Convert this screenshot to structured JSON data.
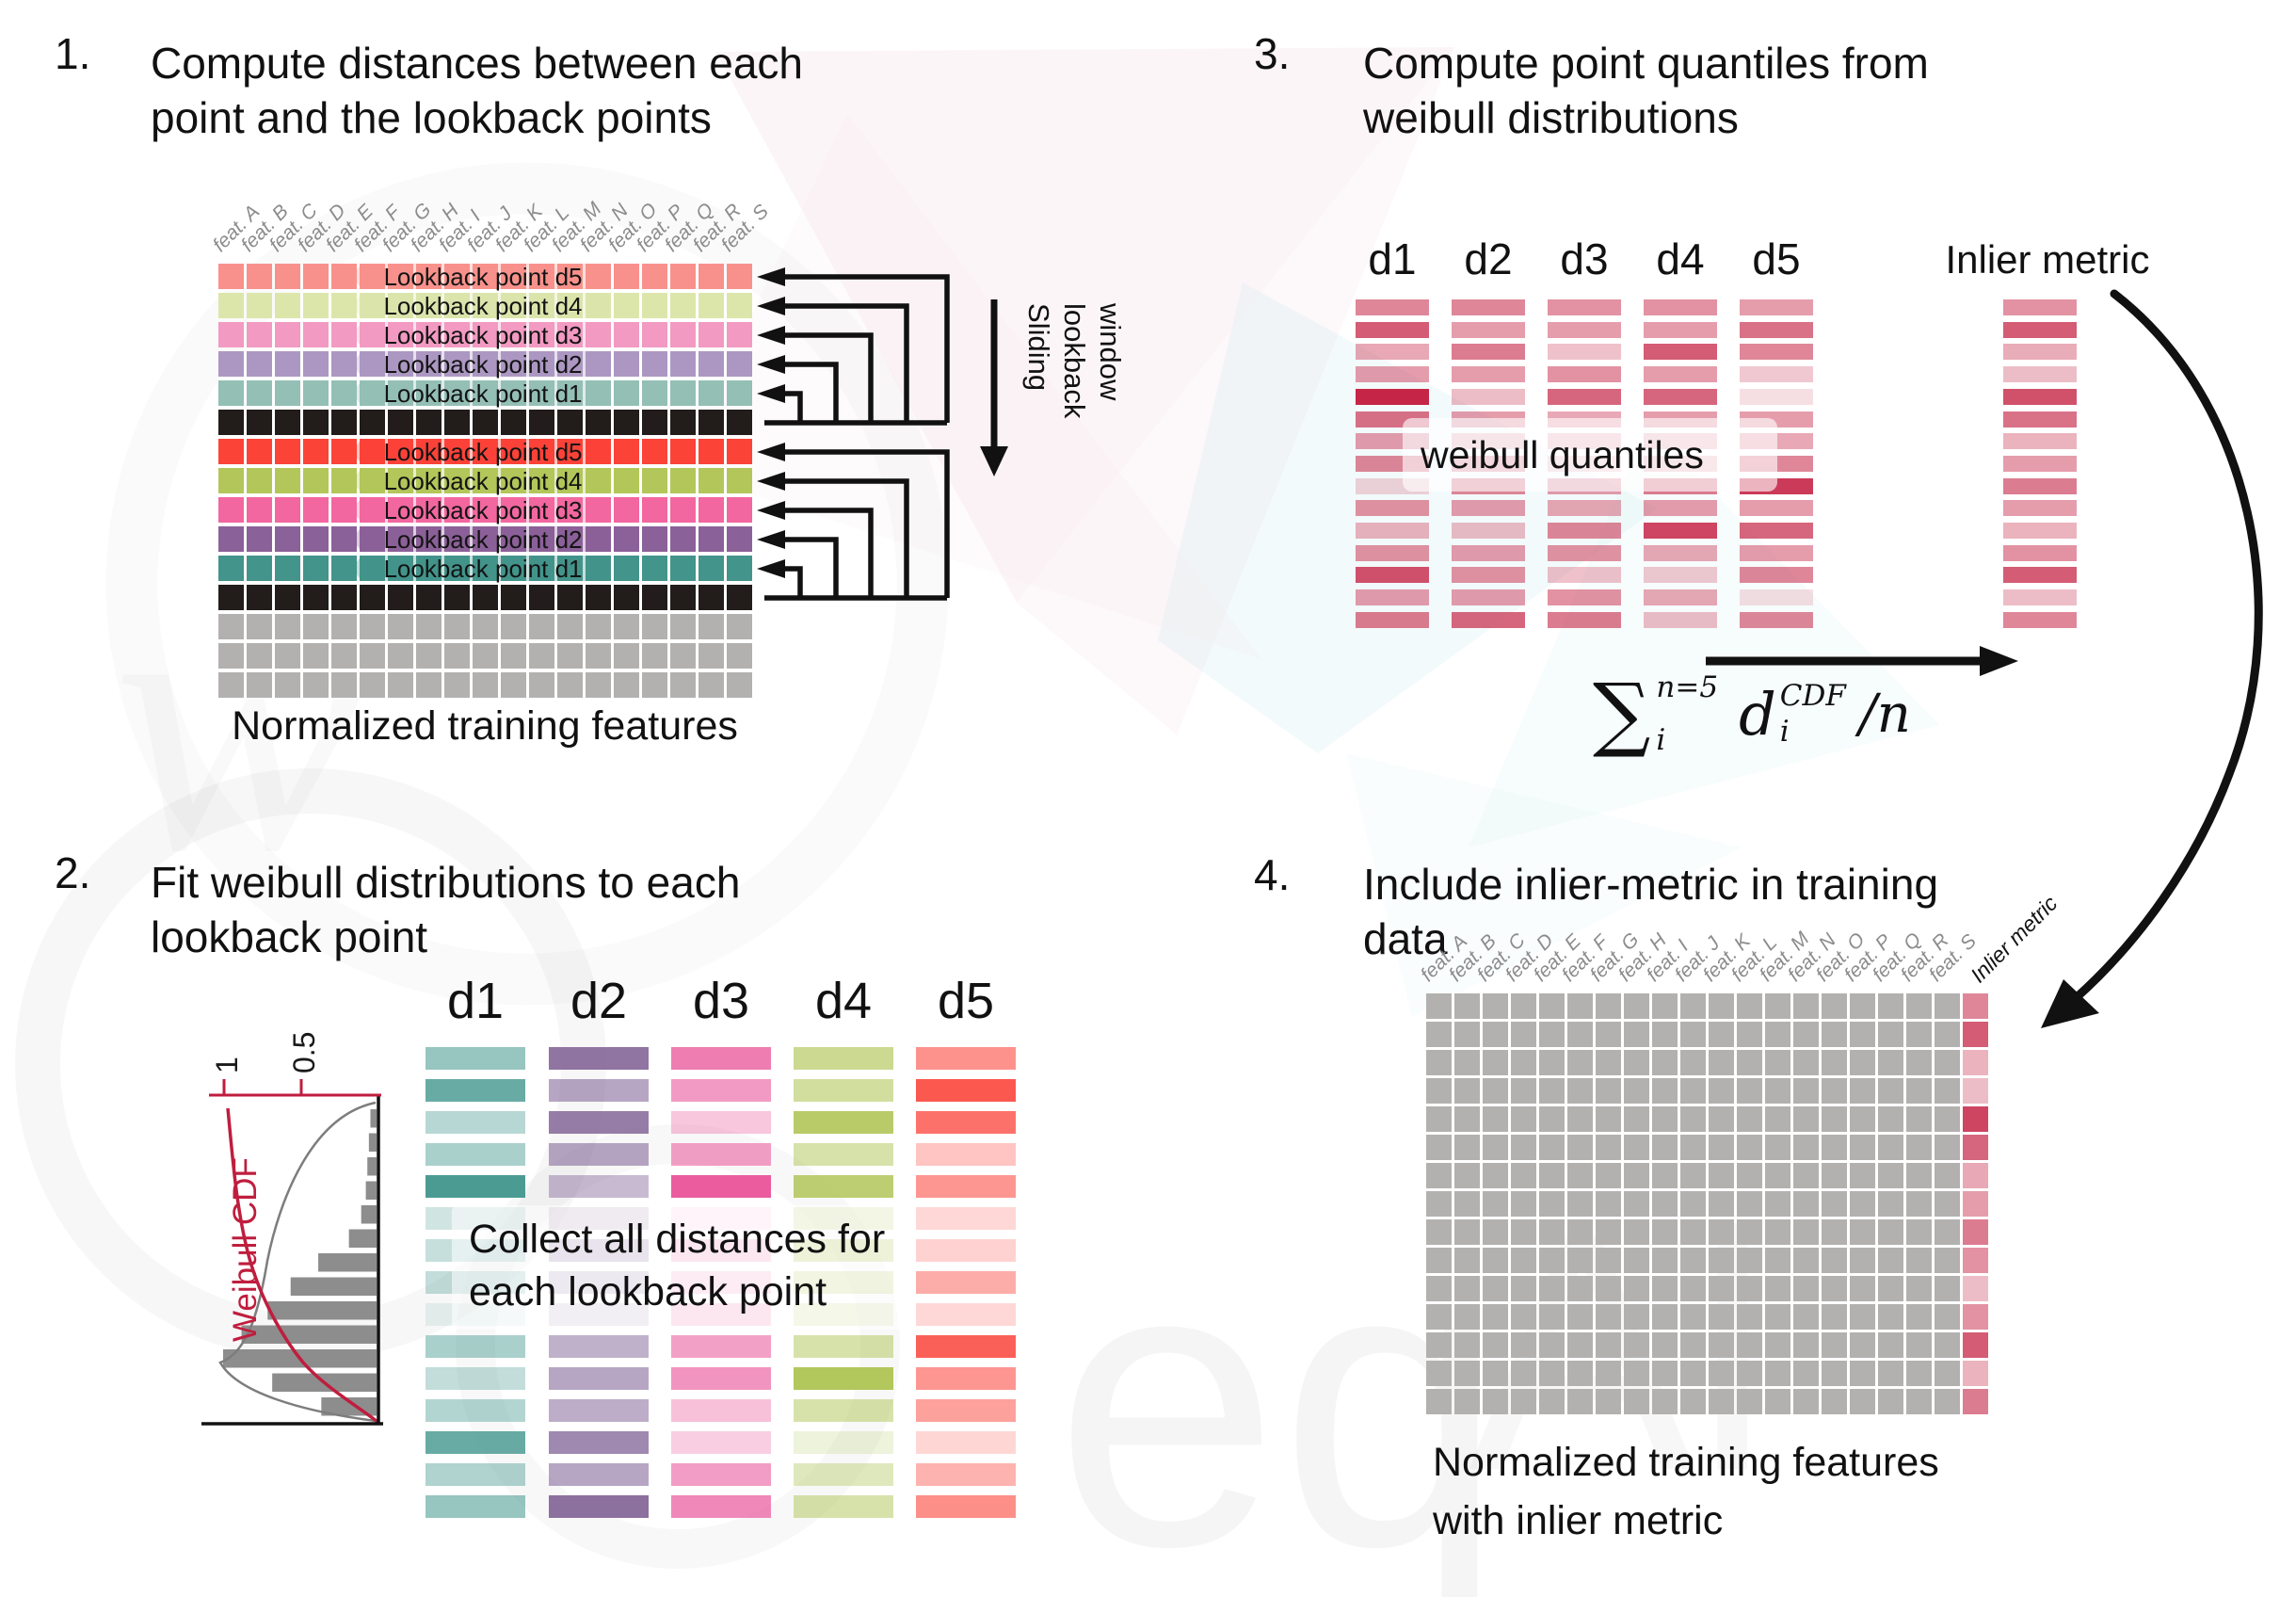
{
  "d_headers": [
    "d1",
    "d2",
    "d3",
    "d4",
    "d5"
  ],
  "features": [
    "feat. A",
    "feat. B",
    "feat. C",
    "feat. D",
    "feat. E",
    "feat. F",
    "feat. G",
    "feat. H",
    "feat. I",
    "feat. J",
    "feat. K",
    "feat. L",
    "feat. M",
    "feat. N",
    "feat. O",
    "feat. P",
    "feat. Q",
    "feat. R",
    "feat. S"
  ],
  "step1": {
    "number": "1.",
    "title_lines": [
      "Compute distances between each",
      "point and the lookback points"
    ],
    "rows": [
      {
        "color": "#f8918c",
        "label": "Lookback point d5"
      },
      {
        "color": "#dce6ab",
        "label": "Lookback point d4"
      },
      {
        "color": "#f29ac2",
        "label": "Lookback point d3"
      },
      {
        "color": "#ac97c2",
        "label": "Lookback point d2"
      },
      {
        "color": "#94bfb5",
        "label": "Lookback point d1"
      },
      {
        "color": "#221d1a",
        "label": ""
      },
      {
        "color": "#fc4338",
        "label": "Lookback point d5"
      },
      {
        "color": "#b3c65a",
        "label": "Lookback point d4"
      },
      {
        "color": "#f2679f",
        "label": "Lookback point d3"
      },
      {
        "color": "#8b6199",
        "label": "Lookback point d2"
      },
      {
        "color": "#43948b",
        "label": "Lookback point d1"
      },
      {
        "color": "#221d1a",
        "label": ""
      },
      {
        "color": "#b3b0b0",
        "label": ""
      },
      {
        "color": "#b3b0b0",
        "label": ""
      },
      {
        "color": "#b3b0b0",
        "label": ""
      }
    ],
    "caption": "Normalized training features",
    "sliding": [
      "Sliding",
      "lookback",
      "window"
    ]
  },
  "step2": {
    "number": "2.",
    "title_lines": [
      "Fit weibull distributions to each",
      "lookback point"
    ],
    "hist": {
      "type": "bar",
      "ylabel": "Weibull CDF",
      "ticks": [
        "1",
        "0.5"
      ],
      "bars": [
        0.04,
        0.05,
        0.06,
        0.07,
        0.1,
        0.18,
        0.38,
        0.56,
        0.71,
        0.88,
        1.0,
        0.68,
        0.36
      ]
    },
    "columns": [
      {
        "name": "d1",
        "color": "#42968d",
        "values": [
          0.55,
          0.8,
          0.38,
          0.45,
          0.95,
          0.25,
          0.3,
          0.32,
          0.12,
          0.45,
          0.32,
          0.4,
          0.8,
          0.42,
          0.55
        ]
      },
      {
        "name": "d2",
        "color": "#7c5c91",
        "values": [
          0.85,
          0.55,
          0.8,
          0.55,
          0.42,
          0.28,
          0.38,
          0.3,
          0.22,
          0.48,
          0.55,
          0.5,
          0.72,
          0.55,
          0.88
        ]
      },
      {
        "name": "d3",
        "color": "#ea5c9e",
        "values": [
          0.8,
          0.62,
          0.35,
          0.58,
          1.0,
          0.15,
          0.32,
          0.26,
          0.32,
          0.58,
          0.65,
          0.38,
          0.3,
          0.6,
          0.72
        ]
      },
      {
        "name": "d4",
        "color": "#abc24e",
        "values": [
          0.62,
          0.55,
          0.85,
          0.48,
          0.8,
          0.32,
          0.48,
          0.38,
          0.28,
          0.48,
          0.92,
          0.48,
          0.2,
          0.38,
          0.48
        ]
      },
      {
        "name": "d5",
        "color": "#fb4a41",
        "values": [
          0.6,
          0.92,
          0.78,
          0.32,
          0.58,
          0.48,
          0.55,
          1.0,
          0.48,
          0.88,
          0.58,
          0.52,
          0.22,
          0.42,
          0.62
        ]
      }
    ],
    "note_lines": [
      "Collect all distances for",
      "each lookback point"
    ]
  },
  "step3": {
    "number": "3.",
    "title_lines": [
      "Compute point quantiles from",
      "weibull distributions"
    ],
    "inlier_header": "Inlier metric",
    "overlay": "weibull quantiles",
    "base_color": "#c52546",
    "columns": [
      [
        0.55,
        0.75,
        0.4,
        0.45,
        1.0,
        0.65,
        0.45,
        0.55,
        0.2,
        0.5,
        0.35,
        0.5,
        0.8,
        0.45,
        0.6
      ],
      [
        0.55,
        0.45,
        0.6,
        0.45,
        0.3,
        0.45,
        0.28,
        0.45,
        0.55,
        0.45,
        0.3,
        0.45,
        0.5,
        0.45,
        0.7
      ],
      [
        0.5,
        0.45,
        0.28,
        0.5,
        0.7,
        0.4,
        0.3,
        0.22,
        0.45,
        0.4,
        0.55,
        0.5,
        0.28,
        0.5,
        0.6
      ],
      [
        0.5,
        0.45,
        0.75,
        0.45,
        0.7,
        0.45,
        0.3,
        0.28,
        0.6,
        0.45,
        0.85,
        0.4,
        0.25,
        0.4,
        0.3
      ],
      [
        0.45,
        0.65,
        0.55,
        0.25,
        0.15,
        0.45,
        0.4,
        0.55,
        0.9,
        0.45,
        0.7,
        0.45,
        0.55,
        0.15,
        0.55
      ]
    ],
    "inlier": [
      0.5,
      0.75,
      0.38,
      0.3,
      0.8,
      0.65,
      0.35,
      0.45,
      0.6,
      0.45,
      0.35,
      0.5,
      0.75,
      0.3,
      0.55
    ],
    "formula": {
      "sum": "∑",
      "upper": "n=5",
      "lower": "i",
      "var": "d",
      "var_sup": "CDF",
      "var_sub": "i",
      "tail": "/n"
    }
  },
  "step4": {
    "number": "4.",
    "title_lines": [
      "Include inlier-metric in training",
      "data"
    ],
    "gray": "#b3b0b0",
    "base_color": "#c52546",
    "inlier_label": "Inlier metric",
    "inlier_values": [
      0.55,
      0.75,
      0.35,
      0.3,
      0.85,
      0.7,
      0.4,
      0.45,
      0.6,
      0.5,
      0.3,
      0.5,
      0.75,
      0.35,
      0.6
    ],
    "caption_lines": [
      "Normalized training features",
      "with inlier metric"
    ]
  }
}
